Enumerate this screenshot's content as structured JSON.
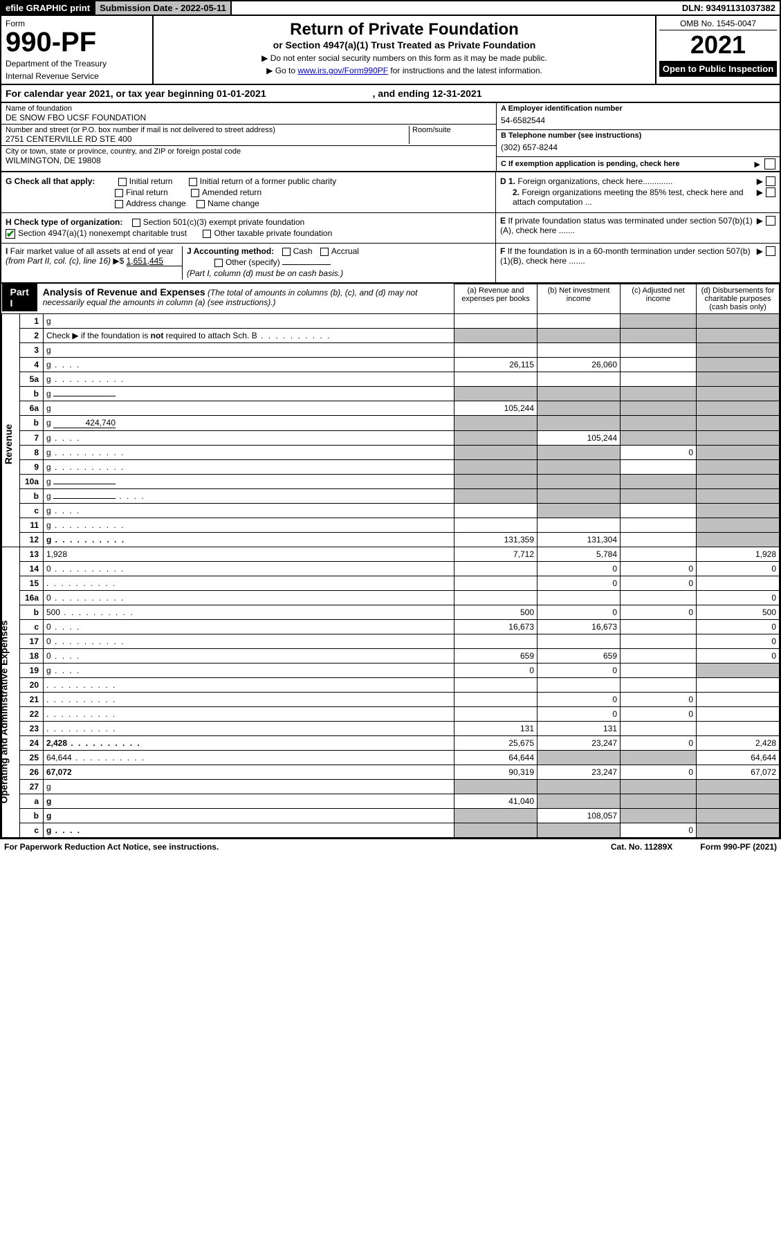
{
  "topbar": {
    "efile": "efile GRAPHIC print",
    "submission": "Submission Date - 2022-05-11",
    "dln": "DLN: 93491131037382"
  },
  "header": {
    "form_word": "Form",
    "form_no": "990-PF",
    "dept": "Department of the Treasury",
    "irs": "Internal Revenue Service",
    "title": "Return of Private Foundation",
    "subtitle": "or Section 4947(a)(1) Trust Treated as Private Foundation",
    "note1": "▶ Do not enter social security numbers on this form as it may be made public.",
    "note2_pre": "▶ Go to ",
    "note2_link": "www.irs.gov/Form990PF",
    "note2_post": " for instructions and the latest information.",
    "omb": "OMB No. 1545-0047",
    "year": "2021",
    "open": "Open to Public Inspection"
  },
  "calyear": {
    "pre": "For calendar year 2021, or tax year beginning ",
    "begin": "01-01-2021",
    "mid": " , and ending ",
    "end": "12-31-2021"
  },
  "entity": {
    "name_lbl": "Name of foundation",
    "name": "DE SNOW FBO UCSF FOUNDATION",
    "addr_lbl": "Number and street (or P.O. box number if mail is not delivered to street address)",
    "addr": "2751 CENTERVILLE RD STE 400",
    "room_lbl": "Room/suite",
    "city_lbl": "City or town, state or province, country, and ZIP or foreign postal code",
    "city": "WILMINGTON, DE  19808",
    "a_lbl": "A Employer identification number",
    "a_val": "54-6582544",
    "b_lbl": "B Telephone number (see instructions)",
    "b_val": "(302) 657-8244",
    "c_lbl": "C If exemption application is pending, check here"
  },
  "checks": {
    "g": "G Check all that apply:",
    "g_items": [
      "Initial return",
      "Initial return of a former public charity",
      "Final return",
      "Amended return",
      "Address change",
      "Name change"
    ],
    "h": "H Check type of organization:",
    "h1": "Section 501(c)(3) exempt private foundation",
    "h2": "Section 4947(a)(1) nonexempt charitable trust",
    "h3": "Other taxable private foundation",
    "i": "I Fair market value of all assets at end of year (from Part II, col. (c), line 16) ▶$ ",
    "i_val": "1,651,445",
    "j": "J Accounting method:",
    "j_cash": "Cash",
    "j_accr": "Accrual",
    "j_other": "Other (specify)",
    "j_note": "(Part I, column (d) must be on cash basis.)",
    "d1": "D 1. Foreign organizations, check here.............",
    "d2": "2. Foreign organizations meeting the 85% test, check here and attach computation ...",
    "e": "E  If private foundation status was terminated under section 507(b)(1)(A), check here .......",
    "f": "F  If the foundation is in a 60-month termination under section 507(b)(1)(B), check here .......",
    "arrow": "▶"
  },
  "part1": {
    "label": "Part I",
    "title": "Analysis of Revenue and Expenses",
    "titlenote": " (The total of amounts in columns (b), (c), and (d) may not necessarily equal the amounts in column (a) (see instructions).)",
    "col_a": "(a)   Revenue and expenses per books",
    "col_b": "(b)   Net investment income",
    "col_c": "(c)   Adjusted net income",
    "col_d": "(d)   Disbursements for charitable purposes (cash basis only)"
  },
  "side": {
    "rev": "Revenue",
    "exp": "Operating and Administrative Expenses"
  },
  "rows": [
    {
      "n": "1",
      "d": "g",
      "a": "",
      "b": "",
      "c": "g"
    },
    {
      "n": "2",
      "d": "g",
      "dot": true,
      "a": "g",
      "b": "g",
      "c": "g",
      "checkbox": true
    },
    {
      "n": "3",
      "d": "g",
      "a": "",
      "b": "",
      "c": ""
    },
    {
      "n": "4",
      "d": "g",
      "dot": "s",
      "a": "26,115",
      "b": "26,060",
      "c": ""
    },
    {
      "n": "5a",
      "d": "g",
      "dot": true,
      "a": "",
      "b": "",
      "c": ""
    },
    {
      "n": "b",
      "d": "g",
      "inline": "",
      "a": "g",
      "b": "g",
      "c": "g"
    },
    {
      "n": "6a",
      "d": "g",
      "a": "105,244",
      "b": "g",
      "c": "g"
    },
    {
      "n": "b",
      "d": "g",
      "inline": "424,740",
      "a": "g",
      "b": "g",
      "c": "g"
    },
    {
      "n": "7",
      "d": "g",
      "dot": "s",
      "a": "g",
      "b": "105,244",
      "c": "g"
    },
    {
      "n": "8",
      "d": "g",
      "dot": true,
      "a": "g",
      "b": "g",
      "c": "0"
    },
    {
      "n": "9",
      "d": "g",
      "dot": true,
      "a": "g",
      "b": "g",
      "c": ""
    },
    {
      "n": "10a",
      "d": "g",
      "inline": "",
      "a": "g",
      "b": "g",
      "c": "g"
    },
    {
      "n": "b",
      "d": "g",
      "dot": "s",
      "inline": "",
      "a": "g",
      "b": "g",
      "c": "g"
    },
    {
      "n": "c",
      "d": "g",
      "dot": "s",
      "a": "",
      "b": "g",
      "c": ""
    },
    {
      "n": "11",
      "d": "g",
      "dot": true,
      "a": "",
      "b": "",
      "c": ""
    },
    {
      "n": "12",
      "d": "g",
      "dot": true,
      "bold": true,
      "a": "131,359",
      "b": "131,304",
      "c": ""
    },
    {
      "n": "13",
      "d": "1,928",
      "a": "7,712",
      "b": "5,784",
      "c": ""
    },
    {
      "n": "14",
      "d": "0",
      "dot": true,
      "a": "",
      "b": "0",
      "c": "0"
    },
    {
      "n": "15",
      "d": "",
      "dot": true,
      "a": "",
      "b": "0",
      "c": "0"
    },
    {
      "n": "16a",
      "d": "0",
      "dot": true,
      "a": "",
      "b": "",
      "c": ""
    },
    {
      "n": "b",
      "d": "500",
      "dot": true,
      "a": "500",
      "b": "0",
      "c": "0"
    },
    {
      "n": "c",
      "d": "0",
      "dot": "s",
      "a": "16,673",
      "b": "16,673",
      "c": ""
    },
    {
      "n": "17",
      "d": "0",
      "dot": true,
      "a": "",
      "b": "",
      "c": ""
    },
    {
      "n": "18",
      "d": "0",
      "dot": "s",
      "a": "659",
      "b": "659",
      "c": ""
    },
    {
      "n": "19",
      "d": "g",
      "dot": "s",
      "a": "0",
      "b": "0",
      "c": ""
    },
    {
      "n": "20",
      "d": "",
      "dot": true,
      "a": "",
      "b": "",
      "c": ""
    },
    {
      "n": "21",
      "d": "",
      "dot": true,
      "a": "",
      "b": "0",
      "c": "0"
    },
    {
      "n": "22",
      "d": "",
      "dot": true,
      "a": "",
      "b": "0",
      "c": "0"
    },
    {
      "n": "23",
      "d": "",
      "dot": true,
      "a": "131",
      "b": "131",
      "c": ""
    },
    {
      "n": "24",
      "d": "2,428",
      "dot": true,
      "bold": true,
      "a": "25,675",
      "b": "23,247",
      "c": "0"
    },
    {
      "n": "25",
      "d": "64,644",
      "dot": true,
      "a": "64,644",
      "b": "g",
      "c": "g"
    },
    {
      "n": "26",
      "d": "67,072",
      "bold": true,
      "a": "90,319",
      "b": "23,247",
      "c": "0"
    },
    {
      "n": "27",
      "d": "g",
      "a": "g",
      "b": "g",
      "c": "g"
    },
    {
      "n": "a",
      "d": "g",
      "bold": true,
      "a": "41,040",
      "b": "g",
      "c": "g"
    },
    {
      "n": "b",
      "d": "g",
      "bold": true,
      "a": "g",
      "b": "108,057",
      "c": "g"
    },
    {
      "n": "c",
      "d": "g",
      "dot": "s",
      "bold": true,
      "a": "g",
      "b": "g",
      "c": "0"
    }
  ],
  "footer": {
    "left": "For Paperwork Reduction Act Notice, see instructions.",
    "mid": "Cat. No. 11289X",
    "right": "Form 990-PF (2021)"
  },
  "colors": {
    "link": "#0000cc",
    "grey": "#c0c0c0",
    "check": "#0a8a0a"
  }
}
